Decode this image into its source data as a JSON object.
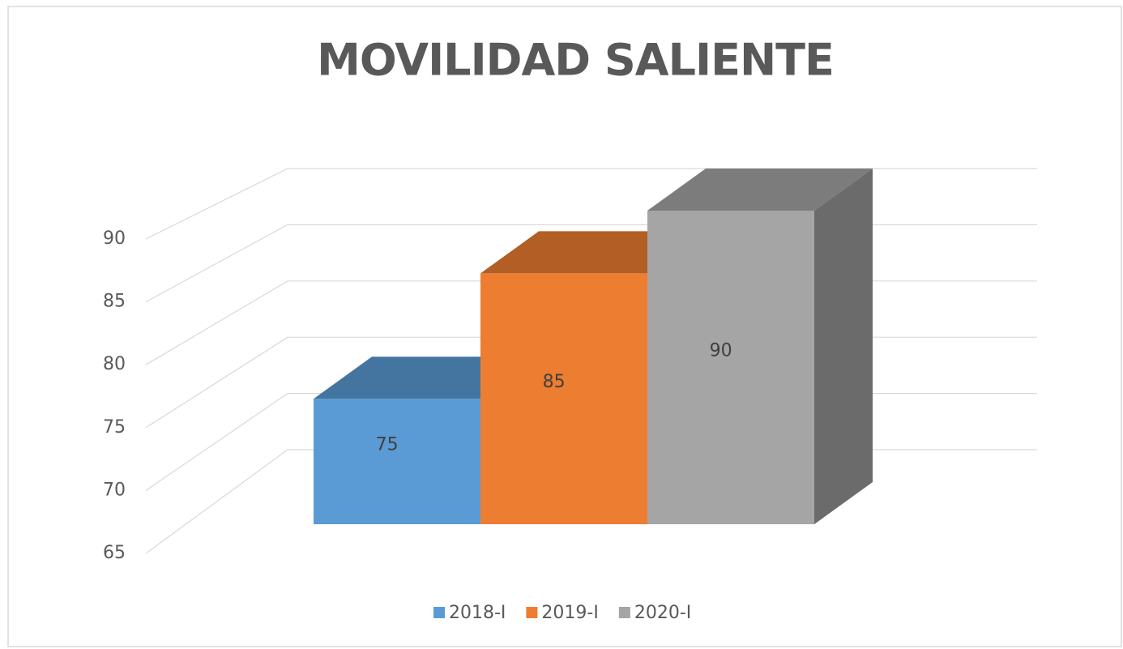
{
  "chart_data": {
    "type": "bar",
    "title": "MOVILIDAD SALIENTE",
    "categories": [
      null
    ],
    "series": [
      {
        "name": "2018-I",
        "color": "#5b9bd5",
        "values": [
          75
        ]
      },
      {
        "name": "2019-I",
        "color": "#ed7d31",
        "values": [
          85
        ]
      },
      {
        "name": "2020-I",
        "color": "#a5a5a5",
        "values": [
          90
        ]
      }
    ],
    "ylim": [
      65,
      90
    ],
    "yticks": [
      65,
      70,
      75,
      80,
      85,
      90
    ],
    "grid": true,
    "legend": "bottom",
    "view": "3d"
  }
}
